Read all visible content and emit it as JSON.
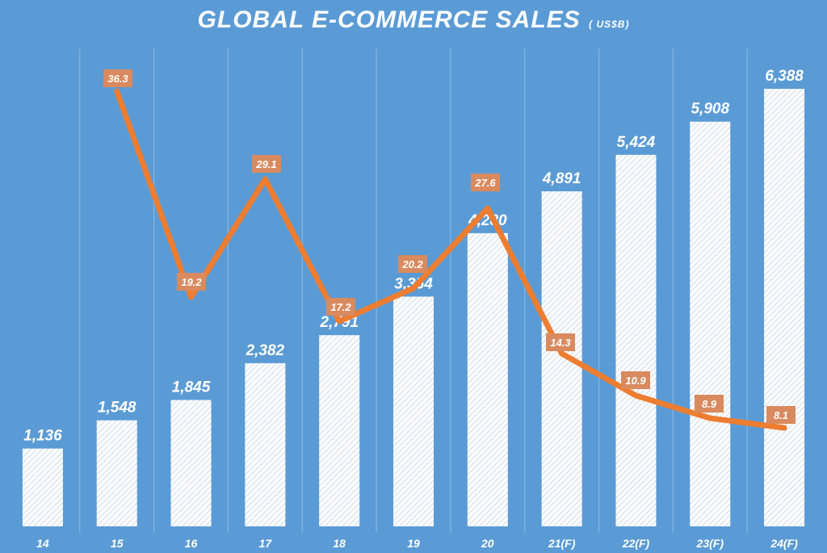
{
  "title": "GLOBAL E-COMMERCE SALES",
  "unit": "( US$B)",
  "colors": {
    "background": "#5b9bd5",
    "bar_hatch": "#c9d9ec",
    "bar_fill": "#ffffff",
    "line": "#ed7d31",
    "line_label_bg": "#d98a5e",
    "text": "#ffffff",
    "divider": "#8fbbe4"
  },
  "chart_data": {
    "type": "bar",
    "title": "GLOBAL E-COMMERCE SALES",
    "unit": "( US$B)",
    "categories": [
      "14",
      "15",
      "16",
      "17",
      "18",
      "19",
      "20",
      "21(F)",
      "22(F)",
      "23(F)",
      "24(F)"
    ],
    "series": [
      {
        "type": "bar",
        "values": [
          1136,
          1548,
          1845,
          2382,
          2791,
          3354,
          4280,
          4891,
          5424,
          5908,
          6388
        ],
        "labels": [
          "1,136",
          "1,548",
          "1,845",
          "2,382",
          "2,791",
          "3,354",
          "4,280",
          "4,891",
          "5,424",
          "5,908",
          "6,388"
        ]
      },
      {
        "type": "line",
        "values": [
          null,
          36.3,
          19.2,
          29.1,
          17.2,
          20.2,
          27.6,
          14.3,
          10.9,
          8.9,
          8.1
        ],
        "labels": [
          "",
          "36.3",
          "19.2",
          "29.1",
          "17.2",
          "20.2",
          "27.6",
          "14.3",
          "10.9",
          "8.9",
          "8.1"
        ]
      }
    ],
    "grid": false,
    "legend": "none"
  }
}
